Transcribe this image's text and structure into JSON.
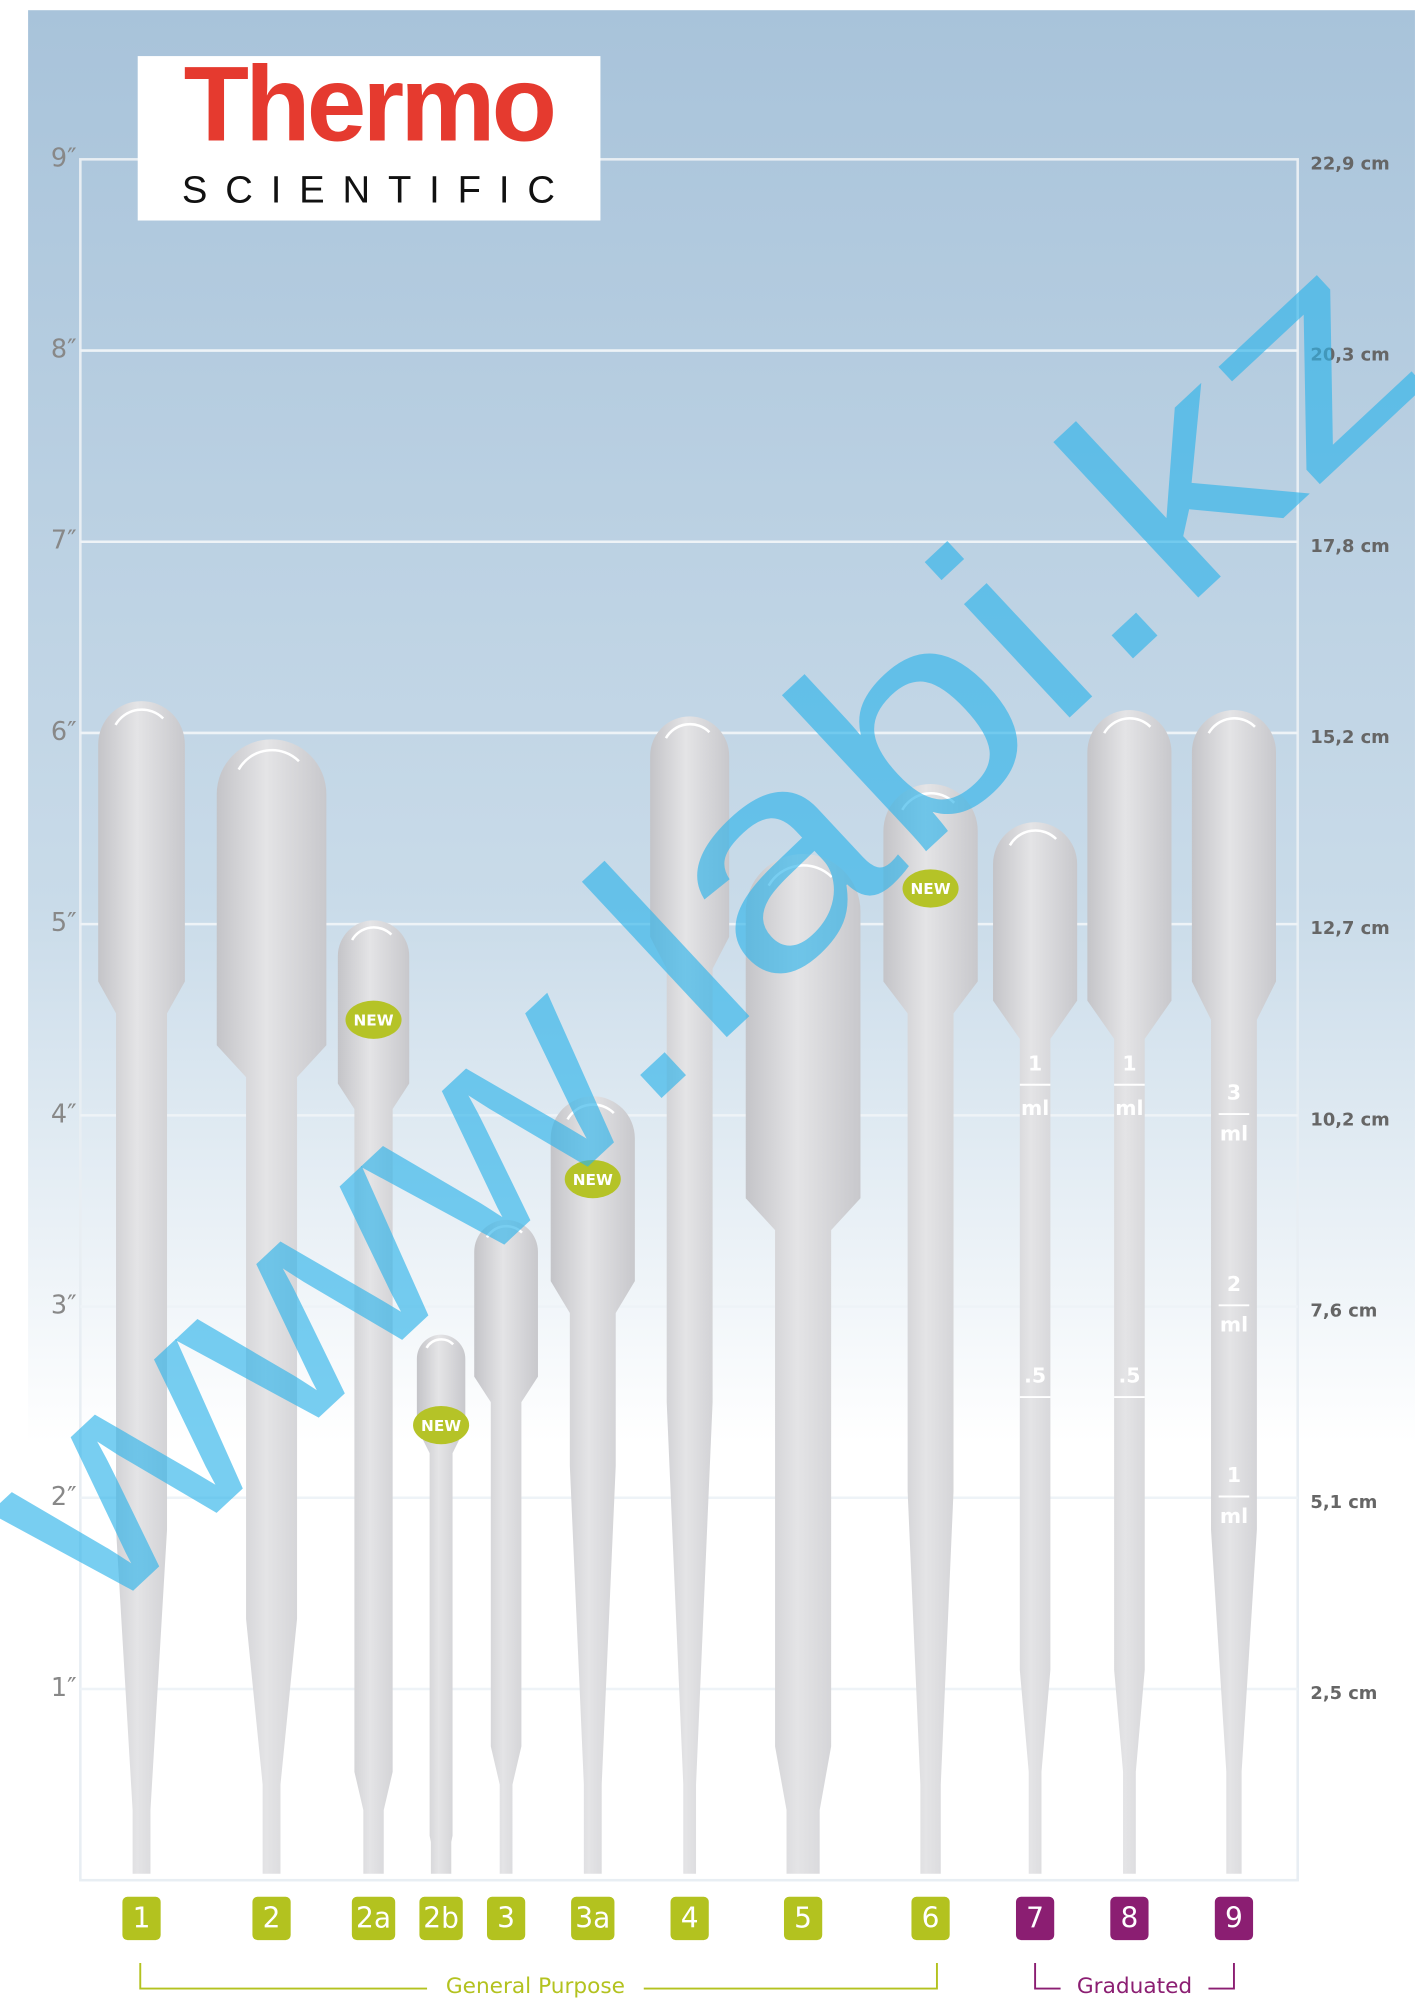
{
  "logo": {
    "brand": "Thermo",
    "sub": "SCIENTIFIC"
  },
  "inch_scale": [
    "9″",
    "8″",
    "7″",
    "6″",
    "5″",
    "4″",
    "3″",
    "2″",
    "1″"
  ],
  "cm_scale": [
    "22,9 cm",
    "20,3 cm",
    "17,8 cm",
    "15,2 cm",
    "12,7 cm",
    "10,2 cm",
    "7,6 cm",
    "5,1 cm",
    "2,5 cm"
  ],
  "pipettes": [
    {
      "label": "1"
    },
    {
      "label": "2"
    },
    {
      "label": "2a",
      "badge": "NEW"
    },
    {
      "label": "2b",
      "badge": "NEW"
    },
    {
      "label": "3"
    },
    {
      "label": "3a",
      "badge": "NEW"
    },
    {
      "label": "4"
    },
    {
      "label": "5"
    },
    {
      "label": "6",
      "badge": "NEW"
    },
    {
      "label": "7",
      "marks": [
        "1",
        "ml",
        ".5"
      ]
    },
    {
      "label": "8",
      "marks": [
        "1",
        "ml",
        ".5"
      ]
    },
    {
      "label": "9",
      "marks": [
        "3",
        "ml",
        "2",
        "ml",
        "1",
        "ml"
      ]
    }
  ],
  "groups": [
    {
      "label": "General Purpose"
    },
    {
      "label": "Graduated"
    }
  ],
  "watermark": "www.labi.kz"
}
